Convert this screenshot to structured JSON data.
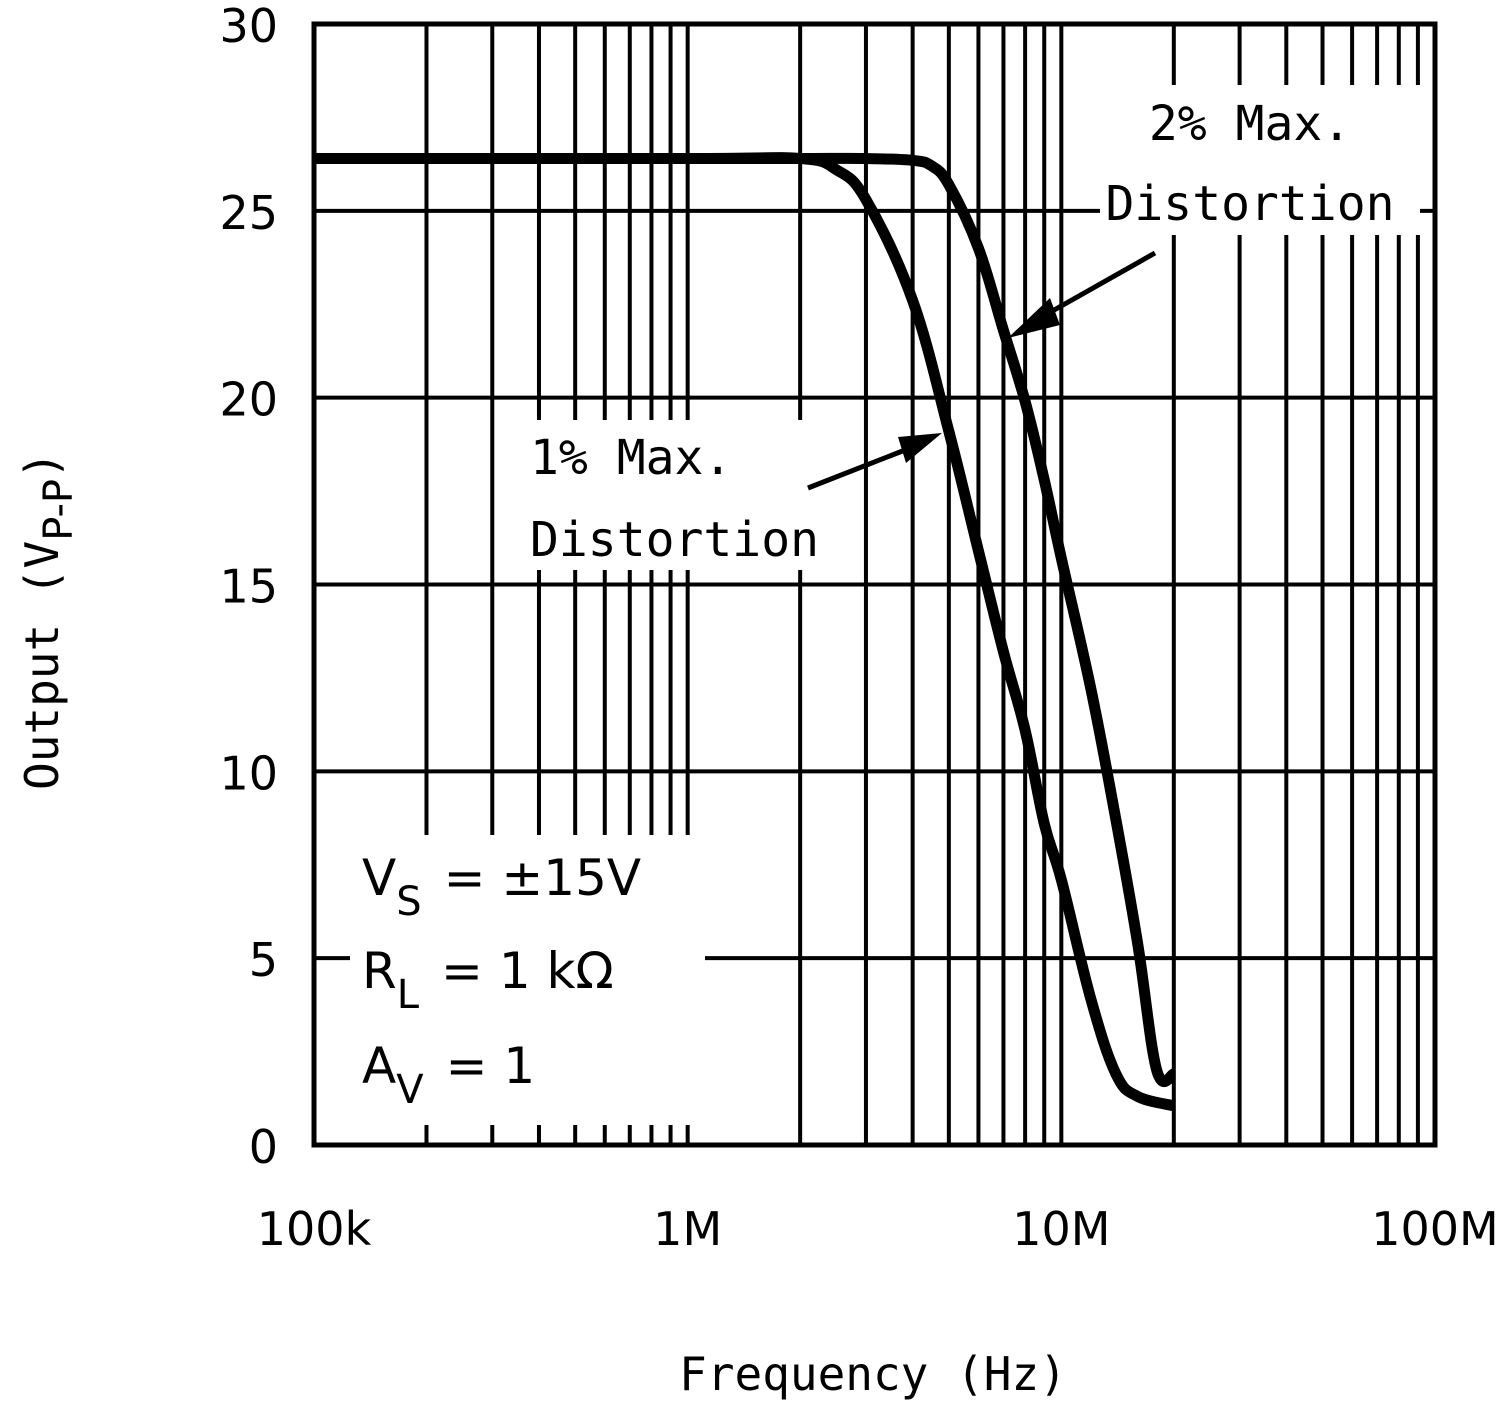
{
  "chart_data": {
    "type": "line",
    "title": "",
    "xlabel": "Frequency (Hz)",
    "ylabel": "Output (V P-P)",
    "ylabel_main": "Output (V",
    "ylabel_sub": "P-P",
    "ylabel_close": ")",
    "xscale": "log",
    "xlim": [
      100000,
      100000000
    ],
    "ylim": [
      0,
      30
    ],
    "grid": true,
    "x_ticks": [
      100000,
      1000000,
      10000000,
      100000000
    ],
    "x_tick_labels": [
      "100k",
      "1M",
      "10M",
      "100M"
    ],
    "y_ticks": [
      0,
      5,
      10,
      15,
      20,
      25,
      30
    ],
    "y_tick_labels": [
      "0",
      "5",
      "10",
      "15",
      "20",
      "25",
      "30"
    ],
    "series": [
      {
        "name": "1% Max. Distortion",
        "x": [
          100000,
          1000000,
          2000000,
          2500000,
          3000000,
          4000000,
          5000000,
          6000000,
          7000000,
          8000000,
          9000000,
          10000000,
          12000000,
          14000000,
          16000000,
          20000000
        ],
        "y": [
          26.4,
          26.4,
          26.4,
          26.1,
          25.3,
          22.6,
          19.1,
          15.9,
          13.2,
          11.1,
          8.6,
          7.1,
          3.9,
          1.9,
          1.3,
          1.05
        ]
      },
      {
        "name": "2% Max. Distortion",
        "x": [
          100000,
          1000000,
          2000000,
          3000000,
          4000000,
          4500000,
          5000000,
          6000000,
          7000000,
          8000000,
          9000000,
          10000000,
          12000000,
          14000000,
          16000000,
          18000000,
          20000000
        ],
        "y": [
          26.4,
          26.4,
          26.4,
          26.4,
          26.35,
          26.2,
          25.7,
          24.0,
          21.8,
          19.9,
          17.8,
          15.7,
          12.2,
          8.7,
          5.4,
          2.0,
          1.9
        ]
      }
    ],
    "annotations": [
      {
        "lines": [
          "2% Max.",
          "Distortion"
        ],
        "target_series": "2% Max. Distortion"
      },
      {
        "lines": [
          "1% Max.",
          "Distortion"
        ],
        "target_series": "1% Max. Distortion"
      }
    ],
    "conditions": [
      {
        "symbol": "V",
        "sub": "S",
        "value": "= ±15V"
      },
      {
        "symbol": "R",
        "sub": "L",
        "value": "= 1 kΩ"
      },
      {
        "symbol": "A",
        "sub": "V",
        "value": "= 1"
      }
    ],
    "colors": {
      "line": "#000000",
      "grid": "#000000",
      "background": "#ffffff"
    }
  }
}
